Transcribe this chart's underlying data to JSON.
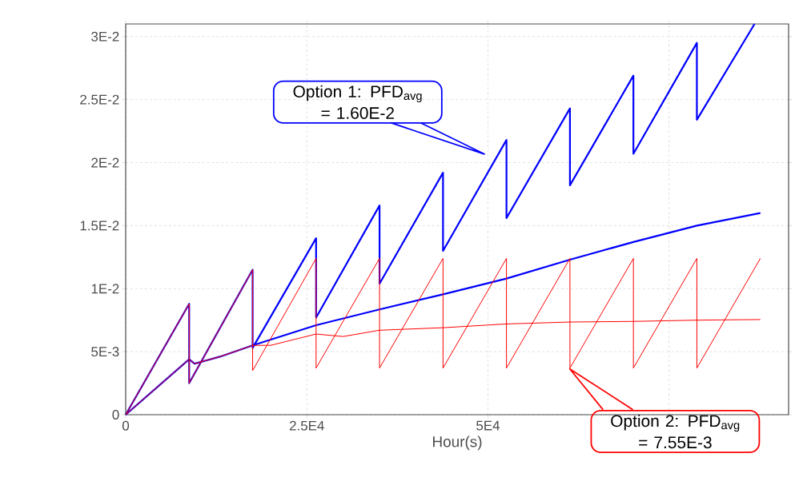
{
  "chart_data": {
    "type": "line",
    "xlabel": "Hour(s)",
    "xlim": [
      0,
      91500
    ],
    "ylim": [
      0,
      0.031
    ],
    "xticks": [
      0,
      {
        "value": 25000,
        "label": "2.5E4"
      },
      {
        "value": 50000,
        "label": "5E4"
      },
      {
        "value": 75000,
        "label": null
      }
    ],
    "yticks": [
      0,
      {
        "value": 0.005,
        "label": "5E-3"
      },
      {
        "value": 0.01,
        "label": "1E-2"
      },
      {
        "value": 0.015,
        "label": "1.5E-2"
      },
      {
        "value": 0.02,
        "label": "2E-2"
      },
      {
        "value": 0.025,
        "label": "2.5E-2"
      },
      {
        "value": 0.03,
        "label": "3E-2"
      }
    ],
    "grid": true,
    "marker": "none",
    "line_style": "solid",
    "series": [
      {
        "color": "#0000ff",
        "x": [
          0,
          8760,
          8760,
          17520,
          17520,
          26280,
          26280,
          35040,
          35040,
          43800,
          43800,
          52560,
          52560,
          61320,
          61320,
          70080,
          70080,
          78840,
          78840,
          86800
        ],
        "values": [
          0,
          0.0088,
          0.0025,
          0.0115,
          0.0053,
          0.014,
          0.0077,
          0.0166,
          0.0104,
          0.0192,
          0.013,
          0.0218,
          0.0156,
          0.0243,
          0.0182,
          0.0269,
          0.0207,
          0.0295,
          0.0234,
          0.031
        ]
      },
      {
        "color": "#0000ff",
        "x": [
          0,
          8760,
          9500,
          13000,
          17520,
          26280,
          35040,
          43800,
          52560,
          61320,
          70080,
          78840,
          87600
        ],
        "values": [
          0,
          0.0044,
          0.00405,
          0.0046,
          0.0055,
          0.0071,
          0.00835,
          0.00955,
          0.0108,
          0.0123,
          0.0137,
          0.015,
          0.016
        ]
      },
      {
        "color": "#ff0000",
        "x": [
          0,
          8760,
          8760,
          17520,
          17520,
          26280,
          26280,
          35040,
          35040,
          43800,
          43800,
          52560,
          52560,
          61320,
          61320,
          70080,
          70080,
          78840,
          78840,
          87600
        ],
        "values": [
          0,
          0.0088,
          0.0025,
          0.0115,
          0.0035,
          0.0124,
          0.0037,
          0.0124,
          0.0037,
          0.0124,
          0.0037,
          0.0124,
          0.0037,
          0.0124,
          0.0037,
          0.0124,
          0.0037,
          0.0124,
          0.0037,
          0.0124
        ]
      },
      {
        "color": "#ff0000",
        "x": [
          0,
          8760,
          9500,
          13000,
          17520,
          20000,
          26280,
          30000,
          35040,
          43800,
          52560,
          61320,
          70080,
          78840,
          87600
        ],
        "values": [
          0,
          0.0044,
          0.00405,
          0.0046,
          0.0055,
          0.0055,
          0.0064,
          0.0062,
          0.0067,
          0.0069,
          0.0072,
          0.00735,
          0.0074,
          0.0075,
          0.00755
        ]
      }
    ],
    "annotations": [
      "Option 1: PFD$_{avg}$ = 1.60E-2",
      "Option 2: PFD$_{avg}$ = 7.55E-3"
    ]
  }
}
